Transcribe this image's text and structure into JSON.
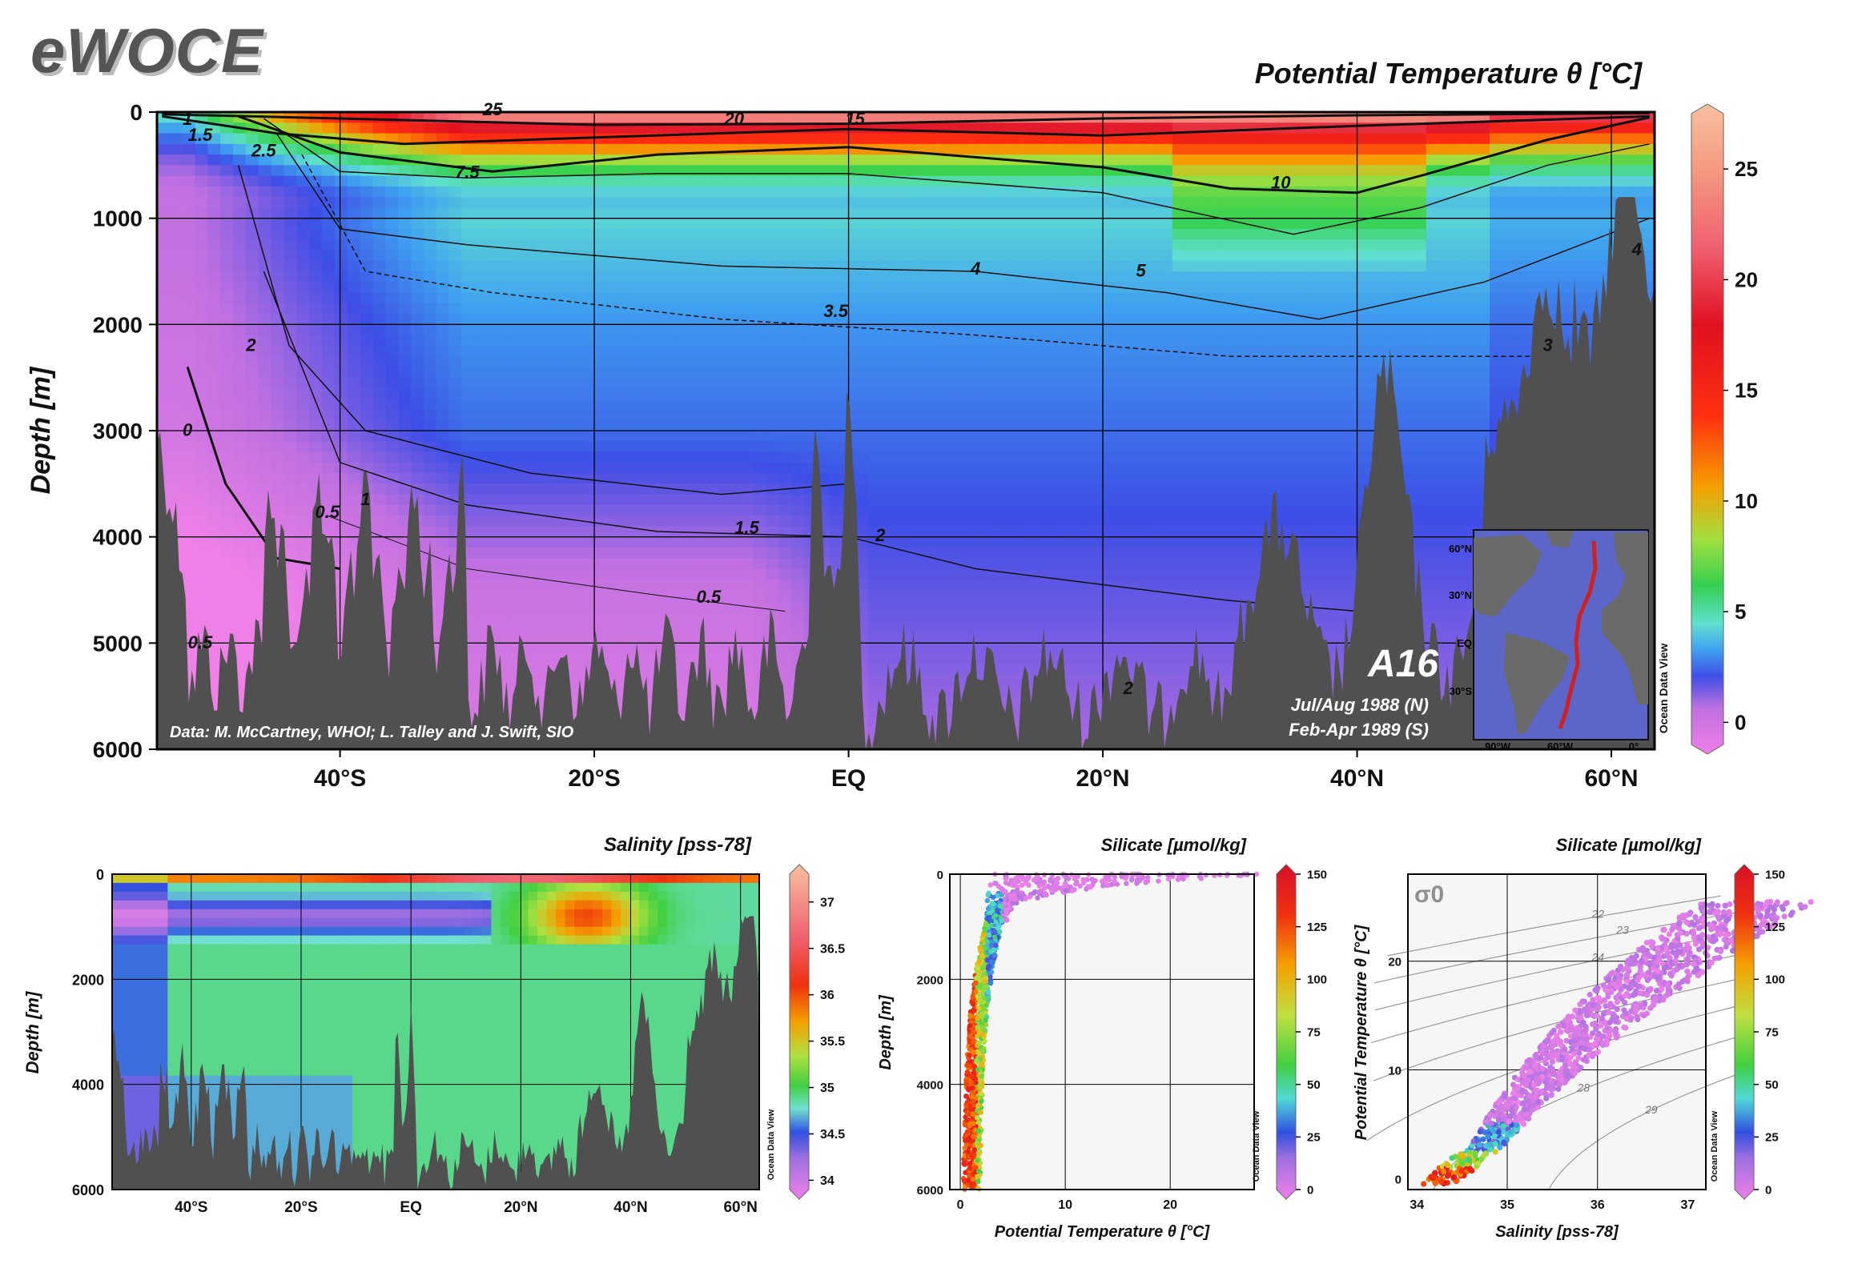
{
  "logo": "eWOCE",
  "colors": {
    "land": "#505050",
    "accent_label": "#ffffff"
  },
  "chart_data": [
    {
      "id": "main-theta-section",
      "type": "heatmap",
      "title": "Potential Temperature θ [°C]",
      "ylabel": "Depth [m]",
      "xlabel": "",
      "ylim": [
        6000,
        0
      ],
      "y_ticks": [
        "0",
        "1000",
        "2000",
        "3000",
        "4000",
        "5000",
        "6000"
      ],
      "x_tick_labels": [
        "40°S",
        "20°S",
        "EQ",
        "20°N",
        "40°N",
        "60°N"
      ],
      "x_tick_values": [
        -40,
        -20,
        0,
        20,
        40,
        60
      ],
      "xlim": [
        -54.4,
        63.4
      ],
      "colorbar_ticks": [
        "0",
        "5",
        "10",
        "15",
        "20",
        "25"
      ],
      "colorbar_values": [
        0,
        5,
        10,
        15,
        20,
        25
      ],
      "colorbar_range": [
        -1,
        27.5
      ],
      "contour_labels": [
        {
          "text": "25",
          "lat": -28,
          "depth": 30
        },
        {
          "text": "20",
          "lat": -9,
          "depth": 120
        },
        {
          "text": "15",
          "lat": 0.5,
          "depth": 120
        },
        {
          "text": "10",
          "lat": 34,
          "depth": 720
        },
        {
          "text": "7.5",
          "lat": -30,
          "depth": 620
        },
        {
          "text": "5",
          "lat": 23,
          "depth": 1550
        },
        {
          "text": "4",
          "lat": 10,
          "depth": 1530
        },
        {
          "text": "4",
          "lat": 62,
          "depth": 1350
        },
        {
          "text": "3.5",
          "lat": -1,
          "depth": 1930
        },
        {
          "text": "3",
          "lat": 55,
          "depth": 2250
        },
        {
          "text": "2.5",
          "lat": -46,
          "depth": 420
        },
        {
          "text": "2",
          "lat": -47,
          "depth": 2250
        },
        {
          "text": "2",
          "lat": 2.5,
          "depth": 4040
        },
        {
          "text": "1.5",
          "lat": -51,
          "depth": 270
        },
        {
          "text": "1.5",
          "lat": -8,
          "depth": 3970
        },
        {
          "text": "1",
          "lat": -52,
          "depth": 120
        },
        {
          "text": "1",
          "lat": -38,
          "depth": 3700
        },
        {
          "text": "0.5",
          "lat": -41,
          "depth": 3820
        },
        {
          "text": "0.5",
          "lat": -11,
          "depth": 4620
        },
        {
          "text": "0.5",
          "lat": -51,
          "depth": 5050
        },
        {
          "text": "0",
          "lat": -52,
          "depth": 3050
        },
        {
          "text": "2",
          "lat": 22,
          "depth": 5480
        }
      ],
      "annotation_data": "Data: M. McCartney, WHOI; L. Talley and J. Swift, SIO",
      "section_name": "A16",
      "dates": [
        "Jul/Aug 1988 (N)",
        "Feb-Apr 1989 (S)"
      ],
      "inset_labels": {
        "lat": [
          "60°N",
          "30°N",
          "EQ",
          "30°S"
        ],
        "lon": [
          "90°W",
          "60°W",
          "0°"
        ]
      },
      "watermark": "Ocean Data View"
    },
    {
      "id": "salinity-section",
      "type": "heatmap",
      "title": "Salinity [pss-78]",
      "ylabel": "Depth [m]",
      "ylim": [
        6000,
        0
      ],
      "y_ticks": [
        "0",
        "2000",
        "4000",
        "6000"
      ],
      "x_tick_labels": [
        "40°S",
        "20°S",
        "EQ",
        "20°N",
        "40°N",
        "60°N"
      ],
      "x_tick_values": [
        -40,
        -20,
        0,
        20,
        40,
        60
      ],
      "xlim": [
        -54.4,
        63.4
      ],
      "colorbar_ticks": [
        "34",
        "34.5",
        "35",
        "35.5",
        "36",
        "36.5",
        "37"
      ],
      "colorbar_values": [
        34,
        34.5,
        35,
        35.5,
        36,
        36.5,
        37
      ],
      "colorbar_range": [
        33.9,
        37.3
      ],
      "watermark": "Ocean Data View"
    },
    {
      "id": "silicate-theta-depth",
      "type": "scatter",
      "title": "Silicate [µmol/kg]",
      "xlabel": "Potential Temperature θ [°C]",
      "ylabel": "Depth [m]",
      "xlim": [
        -1,
        28
      ],
      "ylim": [
        6000,
        0
      ],
      "x_ticks": [
        "0",
        "10",
        "20"
      ],
      "y_ticks": [
        "0",
        "2000",
        "4000",
        "6000"
      ],
      "colorbar_ticks": [
        "0",
        "25",
        "50",
        "75",
        "100",
        "125",
        "150"
      ],
      "colorbar_range": [
        0,
        150
      ],
      "watermark": "Ocean Data View"
    },
    {
      "id": "silicate-ts-diagram",
      "type": "scatter",
      "title": "Silicate [µmol/kg]",
      "xlabel": "Salinity [pss-78]",
      "ylabel": "Potential Temperature θ [°C]",
      "xlim": [
        33.9,
        37.2
      ],
      "ylim": [
        -1,
        28
      ],
      "x_ticks": [
        "34",
        "35",
        "36",
        "37"
      ],
      "y_ticks": [
        "0",
        "10",
        "20"
      ],
      "sigma_label": "σ0",
      "isopycnal_labels": [
        "22",
        "23",
        "24",
        "25",
        "26",
        "27",
        "28",
        "29"
      ],
      "colorbar_ticks": [
        "0",
        "25",
        "50",
        "75",
        "100",
        "125",
        "150"
      ],
      "colorbar_range": [
        0,
        150
      ],
      "watermark": "Ocean Data View"
    }
  ]
}
